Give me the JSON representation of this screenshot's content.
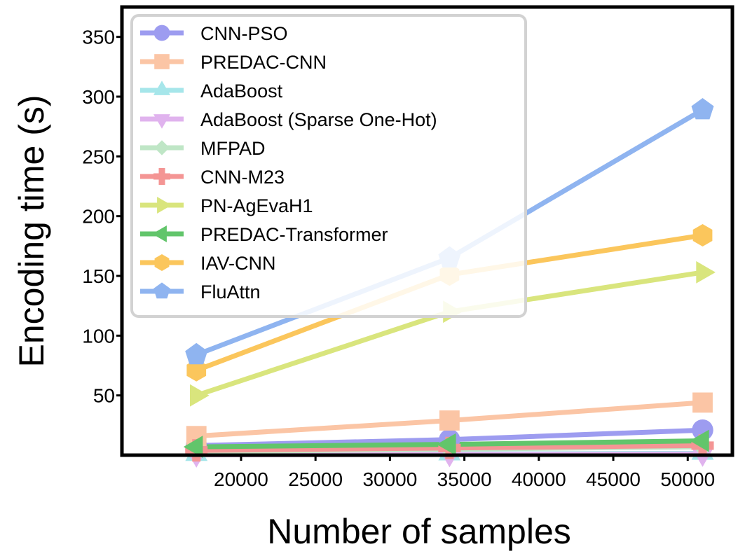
{
  "chart_data": {
    "type": "line",
    "xlabel": "Number of samples",
    "ylabel": "Encoding time (s)",
    "xlim": [
      12000,
      53000
    ],
    "ylim": [
      0,
      375
    ],
    "xticks": [
      20000,
      25000,
      30000,
      35000,
      40000,
      45000,
      50000
    ],
    "yticks": [
      50,
      100,
      150,
      200,
      250,
      300,
      350
    ],
    "legend_position": "upper-left",
    "grid": false,
    "x": [
      17000,
      34000,
      51000
    ],
    "series": [
      {
        "name": "CNN-PSO",
        "values": [
          8,
          13,
          21
        ],
        "color": "#9d9cf0",
        "marker": "circle"
      },
      {
        "name": "PREDAC-CNN",
        "values": [
          16,
          29,
          44
        ],
        "color": "#fbc5a5",
        "marker": "square"
      },
      {
        "name": "AdaBoost",
        "values": [
          0.5,
          1,
          1.5
        ],
        "color": "#a6e6ea",
        "marker": "triangle-up"
      },
      {
        "name": "AdaBoost (Sparse One-Hot)",
        "values": [
          0.3,
          0.6,
          1
        ],
        "color": "#e0b3ee",
        "marker": "triangle-down"
      },
      {
        "name": "MFPAD",
        "values": [
          3,
          5,
          7
        ],
        "color": "#bfe6c6",
        "marker": "diamond"
      },
      {
        "name": "CNN-M23",
        "values": [
          4,
          6,
          8
        ],
        "color": "#f49594",
        "marker": "plus"
      },
      {
        "name": "PN-AgEvaH1",
        "values": [
          50,
          120,
          153
        ],
        "color": "#d9e57d",
        "marker": "triangle-right"
      },
      {
        "name": "PREDAC-Transformer",
        "values": [
          7,
          9,
          12
        ],
        "color": "#62c56b",
        "marker": "triangle-left"
      },
      {
        "name": "IAV-CNN",
        "values": [
          71,
          151,
          184
        ],
        "color": "#fbc65c",
        "marker": "hexagon"
      },
      {
        "name": "FluAttn",
        "values": [
          84,
          165,
          289
        ],
        "color": "#8fb4f0",
        "marker": "pentagon"
      }
    ]
  }
}
